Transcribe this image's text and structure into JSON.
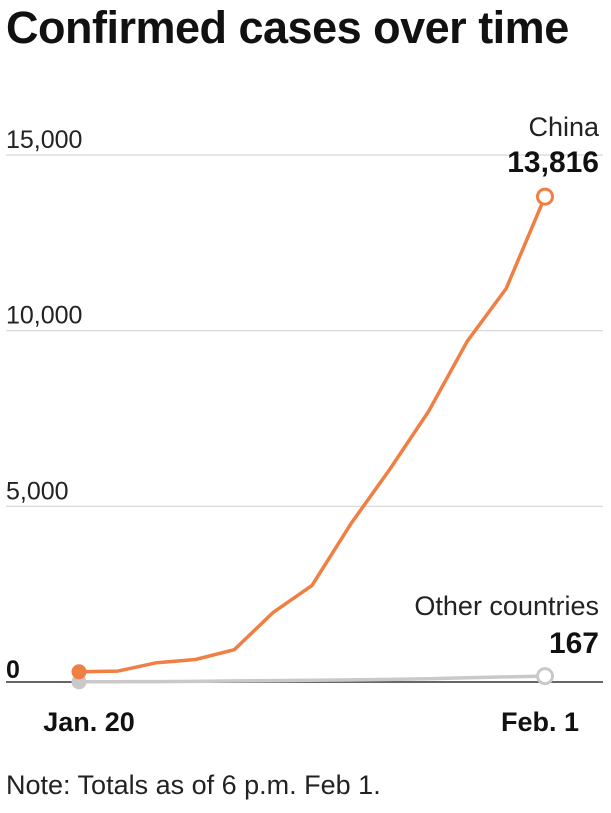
{
  "page": {
    "title": "Confirmed cases over time",
    "note": "Note: Totals as of 6 p.m. Feb 1."
  },
  "colors": {
    "china": "#f07f44",
    "other": "#c9c9c9",
    "grid": "#d6d6d6",
    "baseline": "#666666"
  },
  "chart_data": {
    "type": "line",
    "title": "Confirmed cases over time",
    "xlabel": "",
    "ylabel": "",
    "ylim": [
      0,
      15000
    ],
    "grid": true,
    "y_ticks": [
      {
        "value": 0,
        "label": "0"
      },
      {
        "value": 5000,
        "label": "5,000"
      },
      {
        "value": 10000,
        "label": "10,000"
      },
      {
        "value": 15000,
        "label": "15,000"
      }
    ],
    "x": [
      "Jan. 20",
      "Jan. 21",
      "Jan. 22",
      "Jan. 23",
      "Jan. 24",
      "Jan. 25",
      "Jan. 26",
      "Jan. 27",
      "Jan. 28",
      "Jan. 29",
      "Jan. 30",
      "Jan. 31",
      "Feb. 1"
    ],
    "x_tick_labels": [
      {
        "index": 0,
        "label": "Jan. 20"
      },
      {
        "index": 12,
        "label": "Feb. 1"
      }
    ],
    "series": [
      {
        "name": "China",
        "end_label": "13,816",
        "values": [
          290,
          310,
          550,
          640,
          920,
          1980,
          2750,
          4500,
          6050,
          7700,
          9700,
          11200,
          13816
        ]
      },
      {
        "name": "Other countries",
        "end_label": "167",
        "values": [
          5,
          8,
          10,
          18,
          30,
          40,
          50,
          60,
          75,
          90,
          120,
          145,
          167
        ]
      }
    ]
  }
}
